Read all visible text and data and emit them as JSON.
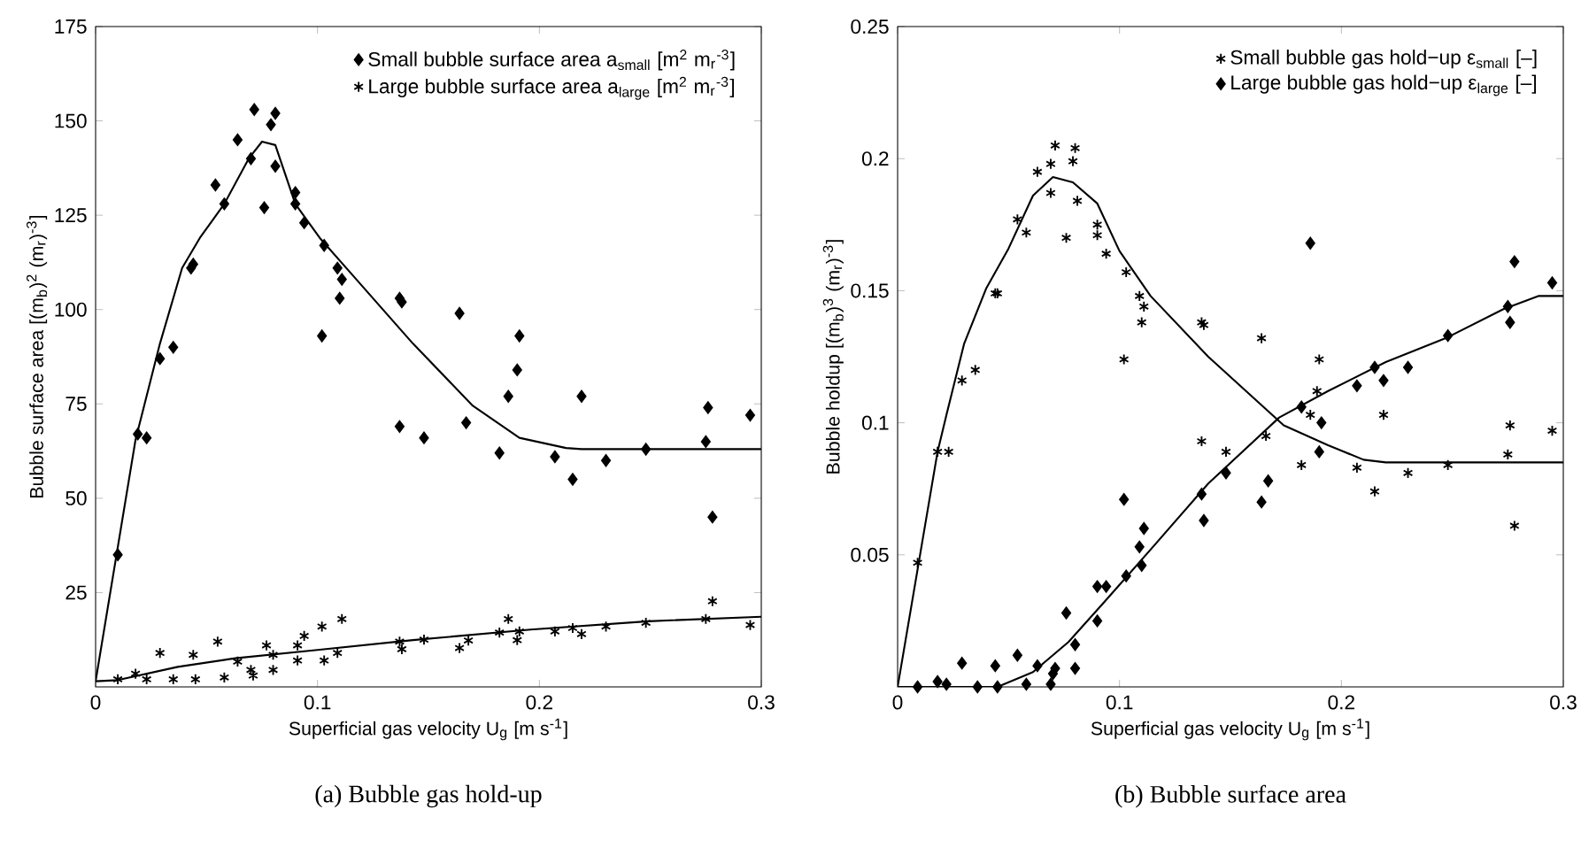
{
  "chart_data": [
    {
      "type": "scatter",
      "title": "(a)  Bubble gas hold-up",
      "xlabel": "Superficial gas velocity U$_{g}$ [m s$^{-1}$]",
      "ylabel": "Bubble surface area [(m$_{b}$)$^{2}$ (m$_{r}$)$^{-3}$]",
      "xlim": [
        0,
        0.3
      ],
      "ylim": [
        0,
        175
      ],
      "xticks": [
        0,
        0.1,
        0.2,
        0.3
      ],
      "yticks": [
        25,
        50,
        75,
        100,
        125,
        150,
        175
      ],
      "grid": false,
      "legend": "top right",
      "series": [
        {
          "name": "Small bubble surface area a$_{small}$ [m$^{2}$ m$_{r}$$^{-3}$]",
          "color": "#000000",
          "marker": "diamond",
          "x": [
            0.0715,
            0.079,
            0.081,
            0.07,
            0.064,
            0.054,
            0.058,
            0.076,
            0.081,
            0.09,
            0.09,
            0.094,
            0.103,
            0.109,
            0.111,
            0.11,
            0.102,
            0.043,
            0.044,
            0.035,
            0.029,
            0.137,
            0.138,
            0.164,
            0.191,
            0.19,
            0.186,
            0.219,
            0.276,
            0.295,
            0.137,
            0.148,
            0.167,
            0.182,
            0.207,
            0.215,
            0.23,
            0.248,
            0.275,
            0.278,
            0.019,
            0.023,
            0.01
          ],
          "values": [
            153,
            149,
            152,
            140,
            145,
            133,
            128,
            127,
            138,
            131,
            128,
            123,
            117,
            111,
            108,
            103,
            93,
            111,
            112,
            90,
            87,
            103,
            102,
            99,
            93,
            84,
            77,
            77,
            74,
            72,
            69,
            66,
            70,
            62,
            61,
            55,
            60,
            63,
            65,
            45,
            67,
            66,
            35
          ]
        },
        {
          "name": "Large bubble surface area a$_{large}$ [m$^{2}$ m$_{r}$$^{-3}$]",
          "color": "#000000",
          "marker": "cross",
          "x": [
            0.01,
            0.018,
            0.023,
            0.029,
            0.035,
            0.044,
            0.045,
            0.055,
            0.058,
            0.064,
            0.07,
            0.071,
            0.077,
            0.08,
            0.08,
            0.091,
            0.091,
            0.094,
            0.102,
            0.103,
            0.109,
            0.111,
            0.137,
            0.138,
            0.148,
            0.164,
            0.168,
            0.182,
            0.186,
            0.191,
            0.19,
            0.207,
            0.215,
            0.219,
            0.23,
            0.248,
            0.275,
            0.278,
            0.295
          ],
          "values": [
            2,
            3.5,
            2,
            9,
            2,
            8.5,
            2,
            12,
            2.5,
            6.7,
            4.5,
            3,
            11,
            8.5,
            4.5,
            11,
            7,
            13.5,
            16,
            7,
            9,
            18,
            12,
            10,
            12.5,
            10.3,
            12.3,
            14.4,
            18,
            14.7,
            12.4,
            14.7,
            15.6,
            14,
            16,
            17,
            18,
            22.7,
            16.4
          ]
        },
        {
          "type": "line",
          "color": "#000000",
          "marker": "none",
          "line_style": "solid",
          "x": [
            0,
            0.018,
            0.029,
            0.039,
            0.047,
            0.058,
            0.069,
            0.075,
            0.081,
            0.09,
            0.101,
            0.116,
            0.143,
            0.17,
            0.191,
            0.212,
            0.219,
            0.3
          ],
          "values": [
            1.5,
            65.5,
            91,
            111,
            119,
            128,
            140,
            144.5,
            143.6,
            128,
            119,
            109,
            91,
            74.5,
            66,
            63.3,
            63,
            63
          ]
        },
        {
          "type": "line",
          "color": "#000000",
          "marker": "none",
          "line_style": "solid",
          "x": [
            0,
            0.01,
            0.037,
            0.063,
            0.1,
            0.143,
            0.196,
            0.249,
            0.3
          ],
          "values": [
            1.5,
            1.8,
            5.3,
            7.6,
            9.8,
            12.4,
            15.2,
            17.4,
            18.6
          ]
        }
      ]
    },
    {
      "type": "scatter",
      "title": "(b)  Bubble surface area",
      "xlabel": "Superficial gas velocity U$_{g}$ [m s$^{-1}$]",
      "ylabel": "Bubble holdup [(m$_{b}$)$^{3}$ (m$_{r}$)$^{-3}$]",
      "xlim": [
        0,
        0.3
      ],
      "ylim": [
        0,
        0.25
      ],
      "xticks": [
        0,
        0.1,
        0.2,
        0.3
      ],
      "yticks": [
        0.05,
        0.1,
        0.15,
        0.2,
        0.25
      ],
      "grid": false,
      "legend": "top right",
      "series": [
        {
          "name": "Small bubble gas hold−up ε$_{small}$ [–]",
          "color": "#000000",
          "marker": "cross",
          "x": [
            0.029,
            0.035,
            0.044,
            0.045,
            0.054,
            0.058,
            0.063,
            0.069,
            0.071,
            0.069,
            0.076,
            0.079,
            0.08,
            0.081,
            0.09,
            0.09,
            0.094,
            0.102,
            0.103,
            0.109,
            0.111,
            0.11,
            0.137,
            0.138,
            0.164,
            0.19,
            0.189,
            0.186,
            0.009,
            0.018,
            0.023,
            0.137,
            0.148,
            0.166,
            0.182,
            0.207,
            0.215,
            0.219,
            0.23,
            0.248,
            0.275,
            0.276,
            0.278,
            0.295
          ],
          "values": [
            0.116,
            0.12,
            0.149,
            0.149,
            0.177,
            0.172,
            0.195,
            0.198,
            0.205,
            0.187,
            0.17,
            0.199,
            0.204,
            0.184,
            0.175,
            0.171,
            0.164,
            0.124,
            0.157,
            0.148,
            0.144,
            0.138,
            0.138,
            0.137,
            0.132,
            0.124,
            0.112,
            0.103,
            0.047,
            0.089,
            0.089,
            0.093,
            0.089,
            0.095,
            0.084,
            0.083,
            0.074,
            0.103,
            0.081,
            0.084,
            0.088,
            0.099,
            0.061,
            0.097
          ]
        },
        {
          "name": "Large bubble gas hold−up ε$_{large}$ [–]",
          "color": "#000000",
          "marker": "diamond",
          "x": [
            0.009,
            0.018,
            0.022,
            0.029,
            0.036,
            0.044,
            0.045,
            0.054,
            0.058,
            0.063,
            0.069,
            0.07,
            0.071,
            0.076,
            0.08,
            0.08,
            0.09,
            0.09,
            0.094,
            0.102,
            0.103,
            0.109,
            0.111,
            0.11,
            0.137,
            0.138,
            0.148,
            0.164,
            0.167,
            0.182,
            0.191,
            0.19,
            0.186,
            0.207,
            0.215,
            0.219,
            0.23,
            0.248,
            0.275,
            0.276,
            0.278,
            0.295
          ],
          "values": [
            0,
            0.002,
            0.001,
            0.009,
            0,
            0.008,
            0,
            0.012,
            0.001,
            0.008,
            0.001,
            0.005,
            0.007,
            0.028,
            0.016,
            0.007,
            0.025,
            0.038,
            0.038,
            0.071,
            0.042,
            0.053,
            0.06,
            0.046,
            0.073,
            0.063,
            0.081,
            0.07,
            0.078,
            0.106,
            0.1,
            0.089,
            0.168,
            0.114,
            0.121,
            0.116,
            0.121,
            0.133,
            0.144,
            0.138,
            0.161,
            0.153
          ]
        },
        {
          "type": "line",
          "color": "#000000",
          "marker": "none",
          "line_style": "solid",
          "x": [
            0,
            0.018,
            0.022,
            0.03,
            0.04,
            0.05,
            0.061,
            0.07,
            0.079,
            0.09,
            0.1,
            0.114,
            0.14,
            0.174,
            0.194,
            0.21,
            0.22,
            0.3
          ],
          "values": [
            0,
            0.089,
            0.103,
            0.13,
            0.151,
            0.166,
            0.186,
            0.193,
            0.191,
            0.183,
            0.165,
            0.148,
            0.125,
            0.099,
            0.0915,
            0.086,
            0.085,
            0.085
          ]
        },
        {
          "type": "line",
          "color": "#000000",
          "marker": "none",
          "line_style": "solid",
          "x": [
            0,
            0.045,
            0.061,
            0.077,
            0.093,
            0.114,
            0.14,
            0.172,
            0.194,
            0.22,
            0.247,
            0.273,
            0.289,
            0.3
          ],
          "values": [
            0,
            0,
            0.0056,
            0.017,
            0.032,
            0.052,
            0.077,
            0.102,
            0.112,
            0.123,
            0.132,
            0.143,
            0.148,
            0.148
          ]
        }
      ]
    }
  ]
}
